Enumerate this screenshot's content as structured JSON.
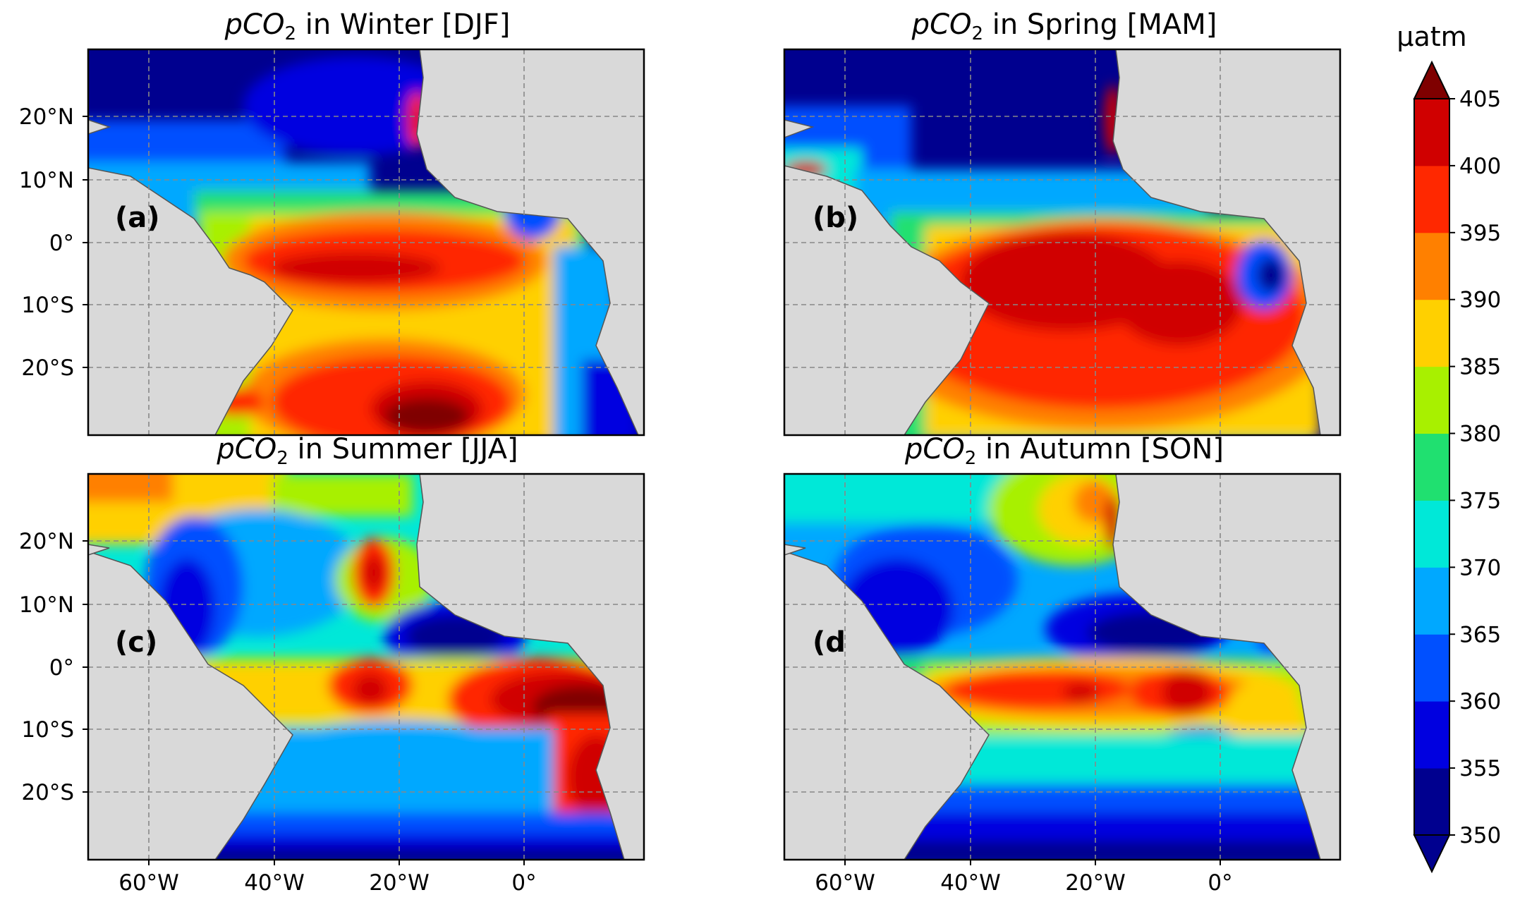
{
  "figure": {
    "panels": [
      {
        "id": "a",
        "title_prefix": "pCO",
        "title_sub": "2",
        "title_suffix": " in Winter [DJF]",
        "label": "(a)"
      },
      {
        "id": "b",
        "title_prefix": "pCO",
        "title_sub": "2",
        "title_suffix": " in Spring [MAM]",
        "label": "(b)"
      },
      {
        "id": "c",
        "title_prefix": "pCO",
        "title_sub": "2",
        "title_suffix": " in Summer [JJA]",
        "label": "(c)"
      },
      {
        "id": "d",
        "title_prefix": "pCO",
        "title_sub": "2",
        "title_suffix": " in Autumn [SON]",
        "label": "(d"
      }
    ],
    "lat_ticks": [
      "20°N",
      "10°N",
      "0°",
      "10°S",
      "20°S"
    ],
    "lon_ticks": [
      "60°W",
      "40°W",
      "20°W",
      "0°"
    ],
    "colorbar": {
      "unit": "μatm",
      "ticks": [
        "405",
        "400",
        "395",
        "390",
        "385",
        "380",
        "375",
        "370",
        "365",
        "360",
        "355",
        "350"
      ],
      "levels": [
        350,
        355,
        360,
        365,
        370,
        375,
        380,
        385,
        390,
        395,
        400,
        405
      ],
      "colors": [
        "#00008f",
        "#0000e0",
        "#0050ff",
        "#00a8ff",
        "#00e8d8",
        "#20e070",
        "#a8f000",
        "#ffd000",
        "#ff8000",
        "#ff2800",
        "#d00000",
        "#7f0000"
      ],
      "extend": "both"
    },
    "land_color": "#d9d9d9",
    "grid": "dashed"
  }
}
